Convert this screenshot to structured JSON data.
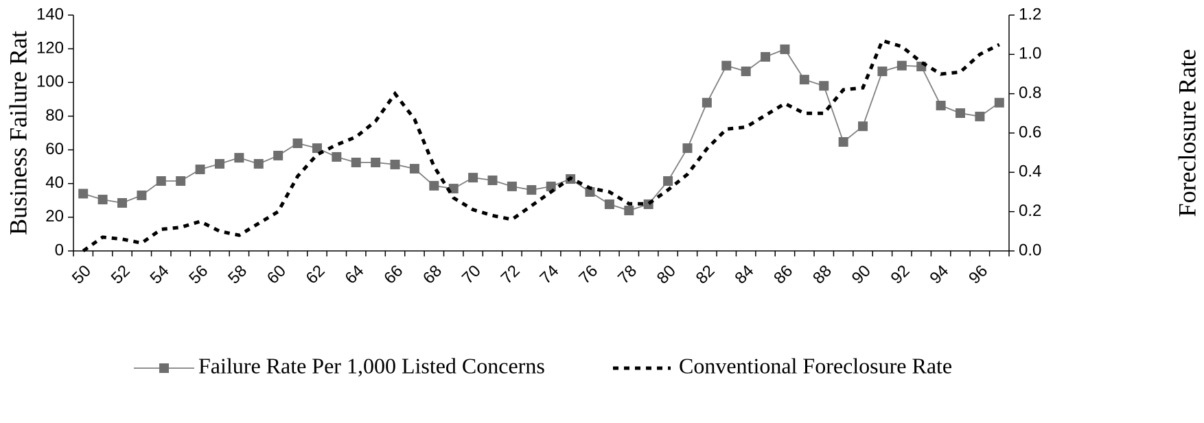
{
  "chart_data": {
    "type": "line",
    "categories": [
      "50",
      null,
      "52",
      null,
      "54",
      null,
      "56",
      null,
      "58",
      null,
      "60",
      null,
      "62",
      null,
      "64",
      null,
      "66",
      null,
      "68",
      null,
      "70",
      null,
      "72",
      null,
      "74",
      null,
      "76",
      null,
      "78",
      null,
      "80",
      null,
      "82",
      null,
      "84",
      null,
      "86",
      null,
      "88",
      null,
      "90",
      null,
      "92",
      null,
      "94",
      null,
      "96",
      null
    ],
    "y_label": "Business Failure Rat",
    "y2_label": "Foreclosure Rate",
    "ylim": [
      0,
      140
    ],
    "yticks": [
      0,
      20,
      40,
      60,
      80,
      100,
      120,
      140
    ],
    "y2lim": [
      0,
      1.2
    ],
    "y2ticks": [
      {
        "value": 0,
        "label": "0.0"
      },
      0.2,
      0.4,
      0.6,
      0.8,
      {
        "value": 1,
        "label": "1.0"
      },
      1.2
    ],
    "legend": "bottom",
    "series": [
      {
        "name": "Failure Rate Per 1,000 Listed Concerns",
        "color": "#808080",
        "marker": "square",
        "axis": "y",
        "values": [
          34,
          30.5,
          28.5,
          33,
          41.5,
          41.5,
          48.4,
          51.7,
          55.3,
          51.7,
          56.6,
          63.9,
          61,
          55.8,
          52.5,
          52.5,
          51.3,
          48.8,
          38.7,
          37,
          43.5,
          41.9,
          38.3,
          36.2,
          38.3,
          42.7,
          35,
          27.7,
          24,
          27.7,
          41.5,
          61,
          88,
          110,
          106.6,
          115.2,
          119.7,
          101.7,
          98,
          64.7,
          74,
          106.6,
          110,
          109.5,
          86.3,
          81.8,
          79.8,
          88
        ]
      },
      {
        "name": "Conventional Foreclosure Rate",
        "color": "#000000",
        "dashed": true,
        "axis": "y2",
        "values": [
          0.0,
          0.07,
          0.06,
          0.04,
          0.11,
          0.12,
          0.15,
          0.1,
          0.08,
          0.14,
          0.2,
          0.38,
          0.49,
          0.54,
          0.58,
          0.66,
          0.8,
          0.67,
          0.43,
          0.27,
          0.21,
          0.18,
          0.16,
          0.23,
          0.3,
          0.37,
          0.32,
          0.3,
          0.24,
          0.24,
          0.31,
          0.39,
          0.52,
          0.62,
          0.63,
          0.69,
          0.75,
          0.7,
          0.7,
          0.82,
          0.83,
          1.07,
          1.04,
          0.96,
          0.9,
          0.91,
          1.0,
          1.05
        ]
      }
    ]
  }
}
